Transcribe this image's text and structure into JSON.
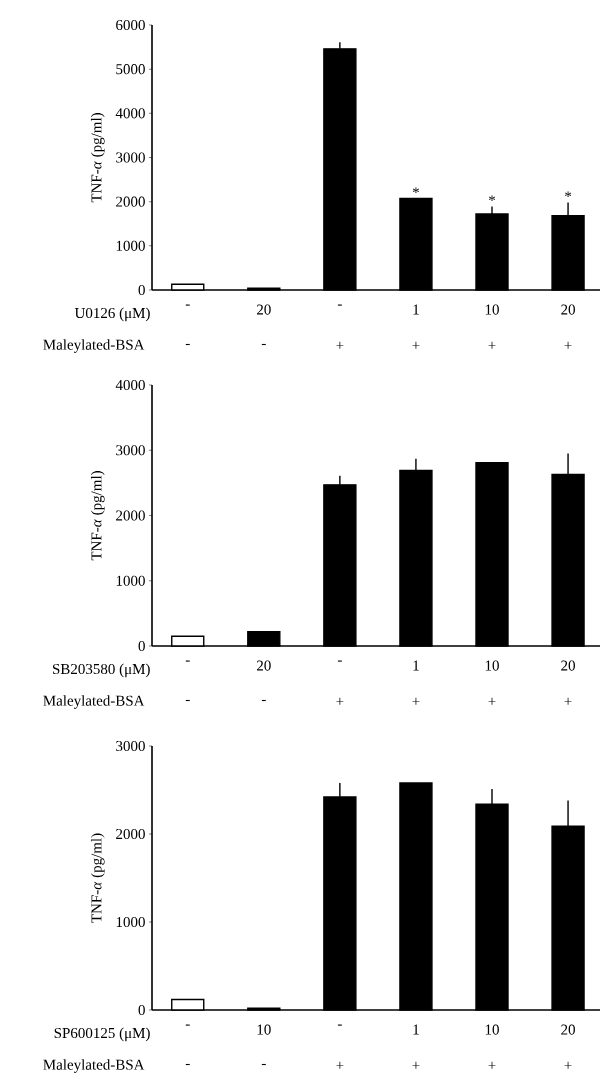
{
  "chart_data": [
    {
      "type": "bar",
      "ylabel": "TNF-*α* (pg/ml)",
      "xlabel": "U0126 (μM)",
      "categories": [
        "-",
        "20",
        "-",
        "1",
        "10",
        "20"
      ],
      "values": [
        130,
        40,
        5460,
        2070,
        1720,
        1680
      ],
      "errors": [
        null,
        null,
        150,
        null,
        170,
        300
      ],
      "colors": [
        "#ffffff",
        "#000000",
        "#000000",
        "#000000",
        "#000000",
        "#000000"
      ],
      "value_labels": [
        null,
        null,
        null,
        "*",
        "*",
        "*"
      ],
      "annotations": [
        "Maleylated-BSA",
        "-",
        "-",
        "+",
        "+",
        "+",
        "+"
      ],
      "ylim": [
        0,
        6000
      ],
      "yticks": [
        0,
        1000,
        2000,
        3000,
        4000,
        5000,
        6000
      ]
    },
    {
      "type": "bar",
      "ylabel": "TNF-*α* (pg/ml)",
      "xlabel": "SB203580 (μM)",
      "categories": [
        "-",
        "20",
        "-",
        "1",
        "10",
        "20"
      ],
      "values": [
        150,
        220,
        2470,
        2690,
        2810,
        2630
      ],
      "errors": [
        null,
        null,
        140,
        180,
        null,
        320
      ],
      "colors": [
        "#ffffff",
        "#000000",
        "#000000",
        "#000000",
        "#000000",
        "#000000"
      ],
      "annotations": [
        "Maleylated-BSA",
        "-",
        "-",
        "+",
        "+",
        "+",
        "+"
      ],
      "ylim": [
        0,
        4000
      ],
      "yticks": [
        0,
        1000,
        2000,
        3000,
        4000
      ]
    },
    {
      "type": "bar",
      "ylabel": "TNF-*α* (pg/ml)",
      "xlabel": "SP600125 (μM)",
      "categories": [
        "-",
        "10",
        "-",
        "1",
        "10",
        "20"
      ],
      "values": [
        120,
        20,
        2420,
        2580,
        2340,
        2090
      ],
      "errors": [
        null,
        null,
        160,
        null,
        170,
        290
      ],
      "colors": [
        "#ffffff",
        "#000000",
        "#000000",
        "#000000",
        "#000000",
        "#000000"
      ],
      "annotations": [
        "Maleylated-BSA",
        "-",
        "-",
        "+",
        "+",
        "+",
        "+"
      ],
      "ylim": [
        0,
        3000
      ],
      "yticks": [
        0,
        1000,
        2000,
        3000
      ]
    }
  ]
}
